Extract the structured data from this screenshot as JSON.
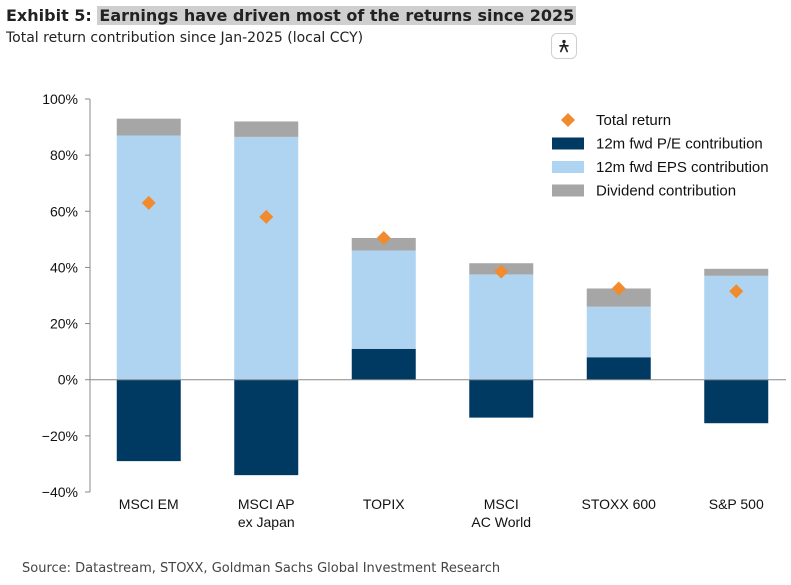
{
  "header": {
    "title_prefix": "Exhibit 5: ",
    "title_highlight": "Earnings have driven most of the returns since 2025",
    "subtitle": "Total return contribution since Jan-2025 (local CCY)"
  },
  "accessibility_button": {
    "icon": "accessibility-person-icon"
  },
  "source": "Source: Datastream, STOXX, Goldman Sachs Global Investment Research",
  "colors": {
    "pe": "#003a63",
    "eps": "#aed4f1",
    "dividend": "#a6a6a6",
    "total": "#f28a2e"
  },
  "chart_data": {
    "type": "bar",
    "stacked": true,
    "categories": [
      [
        "MSCI EM"
      ],
      [
        "MSCI AP",
        "ex Japan"
      ],
      [
        "TOPIX"
      ],
      [
        "MSCI",
        "AC World"
      ],
      [
        "STOXX 600"
      ],
      [
        "S&P 500"
      ]
    ],
    "series": [
      {
        "name": "12m fwd P/E contribution",
        "values": [
          -29,
          -34,
          11,
          -13.5,
          8,
          -15.5
        ]
      },
      {
        "name": "12m fwd EPS contribution",
        "values": [
          87,
          86.5,
          35,
          37.5,
          18,
          37
        ]
      },
      {
        "name": "Dividend contribution",
        "values": [
          6,
          5.5,
          4.5,
          4,
          6.5,
          2.5
        ]
      },
      {
        "name": "Total return",
        "type": "marker",
        "values": [
          63,
          58,
          50.5,
          38.5,
          32.5,
          31.5
        ]
      }
    ],
    "legend_order": [
      "Total return",
      "12m fwd P/E contribution",
      "12m fwd EPS contribution",
      "Dividend contribution"
    ],
    "ylim": [
      -40,
      100
    ],
    "yticks": [
      -40,
      -20,
      0,
      20,
      40,
      60,
      80,
      100
    ],
    "ytick_labels": [
      "−40%",
      "−20%",
      "0%",
      "20%",
      "40%",
      "60%",
      "80%",
      "100%"
    ],
    "legend_position": "top-right",
    "grid": false
  }
}
